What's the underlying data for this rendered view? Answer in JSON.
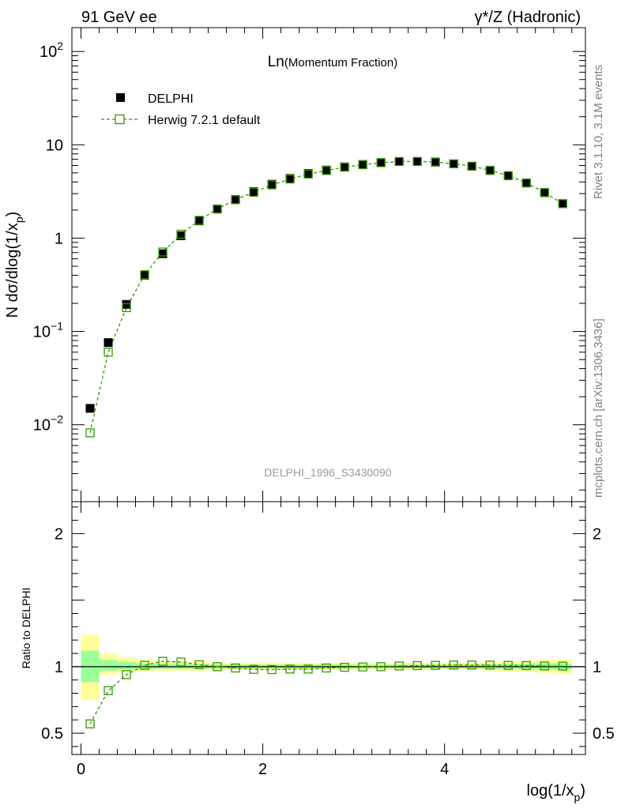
{
  "header": {
    "left": "91 GeV ee",
    "right": "γ*/Z (Hadronic)"
  },
  "side_labels": {
    "rivet": "Rivet 3.1.10,  3.1M events",
    "mcplots": "mcplots.cern.ch [arXiv:1306.3436]"
  },
  "watermark": "DELPHI_1996_S3430090",
  "chart_data": [
    {
      "type": "scatter",
      "title_main": "Ln",
      "title_sub": "(Momentum Fraction)",
      "ylabel": "N dσ/dlog(1/x",
      "ylabel_sub": "p",
      "ylabel_close": ")",
      "yscale": "log",
      "xlim": [
        -0.1,
        5.55
      ],
      "ylim": [
        0.0015,
        180
      ],
      "legend_position": "top-left",
      "y_ticks": [
        {
          "value": 0.01,
          "base": "10",
          "exp": "−2"
        },
        {
          "value": 0.1,
          "base": "10",
          "exp": "−1"
        },
        {
          "value": 1,
          "base": "1",
          "exp": ""
        },
        {
          "value": 10,
          "base": "10",
          "exp": ""
        },
        {
          "value": 100,
          "base": "10",
          "exp": "2"
        }
      ],
      "x": [
        0.1,
        0.3,
        0.5,
        0.7,
        0.9,
        1.1,
        1.3,
        1.5,
        1.7,
        1.9,
        2.1,
        2.3,
        2.5,
        2.7,
        2.9,
        3.1,
        3.3,
        3.5,
        3.7,
        3.9,
        4.1,
        4.3,
        4.5,
        4.7,
        4.9,
        5.1,
        5.3
      ],
      "series": [
        {
          "name": "DELPHI",
          "color": "#000000",
          "marker": "filled-square",
          "values": [
            0.015,
            0.076,
            0.195,
            0.4,
            0.68,
            1.06,
            1.53,
            2.05,
            2.6,
            3.15,
            3.78,
            4.36,
            4.93,
            5.36,
            5.8,
            6.15,
            6.45,
            6.62,
            6.62,
            6.52,
            6.24,
            5.88,
            5.3,
            4.65,
            3.9,
            3.07,
            2.34
          ]
        },
        {
          "name": "Herwig 7.2.1 default",
          "color": "#339900",
          "marker": "open-square",
          "line": "dashed",
          "values": [
            0.0082,
            0.06,
            0.18,
            0.405,
            0.71,
            1.1,
            1.55,
            2.05,
            2.58,
            3.1,
            3.72,
            4.3,
            4.86,
            5.3,
            5.76,
            6.12,
            6.43,
            6.62,
            6.64,
            6.54,
            6.26,
            5.9,
            5.33,
            4.68,
            3.9,
            3.08,
            2.34
          ]
        }
      ]
    },
    {
      "type": "scatter",
      "ylabel": "Ratio to DELPHI",
      "xlabel": "log(1/x",
      "xlabel_sub": "p",
      "xlabel_close": ")",
      "xlim": [
        -0.1,
        5.55
      ],
      "ylim": [
        0.34,
        2.24
      ],
      "x_ticks": [
        0,
        2,
        4
      ],
      "y_ticks": [
        0.5,
        1,
        2
      ],
      "reference_line": 1,
      "band_edges": [
        0.0,
        0.2,
        0.4,
        0.6,
        0.8,
        1.0,
        1.2,
        1.4,
        1.6,
        1.8,
        2.0,
        2.2,
        2.4,
        2.6,
        2.8,
        3.0,
        3.2,
        3.4,
        3.6,
        3.8,
        4.0,
        4.2,
        4.4,
        4.6,
        4.8,
        5.0,
        5.2,
        5.4
      ],
      "band_yellow": [
        [
          0.75,
          1.24
        ],
        [
          0.94,
          1.1
        ],
        [
          0.96,
          1.07
        ],
        [
          0.965,
          1.05
        ],
        [
          0.97,
          1.04
        ],
        [
          0.97,
          1.04
        ],
        [
          0.97,
          1.035
        ],
        [
          0.972,
          1.032
        ],
        [
          0.975,
          1.03
        ],
        [
          0.975,
          1.03
        ],
        [
          0.975,
          1.03
        ],
        [
          0.975,
          1.03
        ],
        [
          0.975,
          1.03
        ],
        [
          0.975,
          1.03
        ],
        [
          0.975,
          1.03
        ],
        [
          0.975,
          1.03
        ],
        [
          0.975,
          1.03
        ],
        [
          0.975,
          1.03
        ],
        [
          0.975,
          1.03
        ],
        [
          0.975,
          1.03
        ],
        [
          0.975,
          1.03
        ],
        [
          0.975,
          1.03
        ],
        [
          0.97,
          1.035
        ],
        [
          0.965,
          1.04
        ],
        [
          0.96,
          1.045
        ],
        [
          0.955,
          1.05
        ],
        [
          0.95,
          1.055
        ]
      ],
      "band_green": [
        [
          0.885,
          1.12
        ],
        [
          0.97,
          1.05
        ],
        [
          0.98,
          1.035
        ],
        [
          0.982,
          1.025
        ],
        [
          0.985,
          1.02
        ],
        [
          0.985,
          1.02
        ],
        [
          0.985,
          1.018
        ],
        [
          0.986,
          1.016
        ],
        [
          0.987,
          1.015
        ],
        [
          0.987,
          1.015
        ],
        [
          0.987,
          1.015
        ],
        [
          0.987,
          1.015
        ],
        [
          0.987,
          1.015
        ],
        [
          0.987,
          1.015
        ],
        [
          0.987,
          1.015
        ],
        [
          0.987,
          1.015
        ],
        [
          0.987,
          1.015
        ],
        [
          0.987,
          1.015
        ],
        [
          0.987,
          1.015
        ],
        [
          0.987,
          1.015
        ],
        [
          0.987,
          1.015
        ],
        [
          0.987,
          1.015
        ],
        [
          0.985,
          1.017
        ],
        [
          0.983,
          1.019
        ],
        [
          0.981,
          1.021
        ],
        [
          0.979,
          1.023
        ],
        [
          0.977,
          1.025
        ]
      ],
      "x": [
        0.1,
        0.3,
        0.5,
        0.7,
        0.9,
        1.1,
        1.3,
        1.5,
        1.7,
        1.9,
        2.1,
        2.3,
        2.5,
        2.7,
        2.9,
        3.1,
        3.3,
        3.5,
        3.7,
        3.9,
        4.1,
        4.3,
        4.5,
        4.7,
        4.9,
        5.1,
        5.3
      ],
      "series": [
        {
          "name": "Herwig 7.2.1 default",
          "color": "#339900",
          "marker": "open-square",
          "line": "dashed",
          "values": [
            0.57,
            0.82,
            0.94,
            1.01,
            1.04,
            1.035,
            1.015,
            1.0,
            0.99,
            0.98,
            0.978,
            0.982,
            0.982,
            0.99,
            0.995,
            0.998,
            1.0,
            1.005,
            1.008,
            1.01,
            1.012,
            1.012,
            1.012,
            1.01,
            1.008,
            1.005,
            1.004
          ]
        }
      ]
    }
  ]
}
